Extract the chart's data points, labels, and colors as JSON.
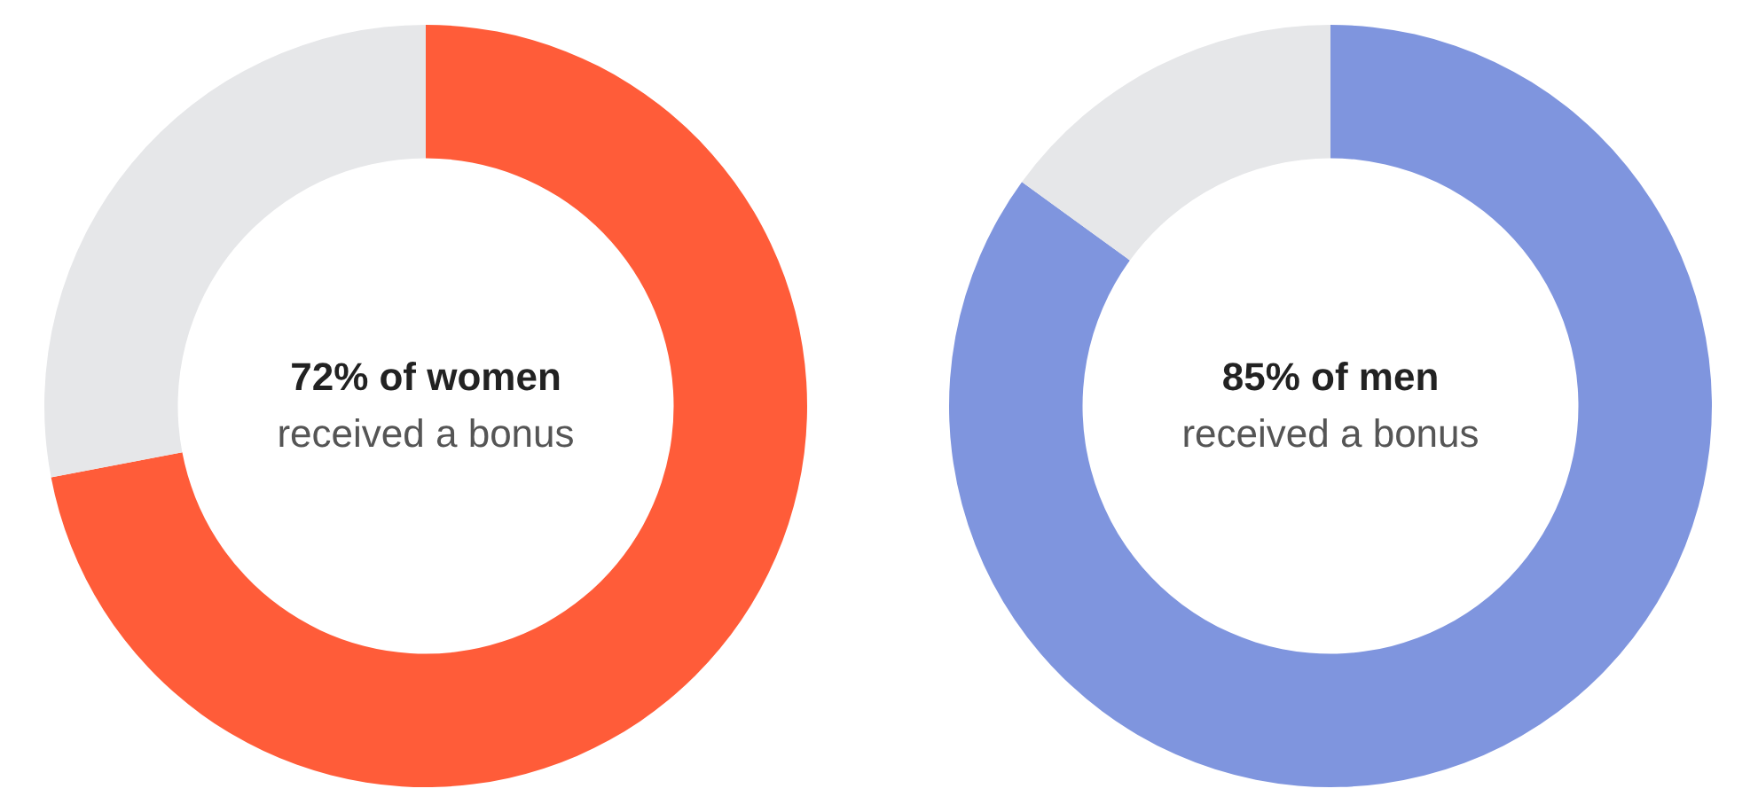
{
  "chart_data": [
    {
      "type": "donut",
      "categories": [
        null,
        null
      ],
      "values": [
        72,
        28
      ],
      "colors": [
        "#ff5c39",
        "#e6e7e9"
      ],
      "annotations": [
        "72% of women",
        "received a bonus"
      ]
    },
    {
      "type": "donut",
      "categories": [
        null,
        null
      ],
      "values": [
        85,
        15
      ],
      "colors": [
        "#7f95de",
        "#e6e7e9"
      ],
      "annotations": [
        "85% of men",
        "received a bonus"
      ]
    }
  ]
}
